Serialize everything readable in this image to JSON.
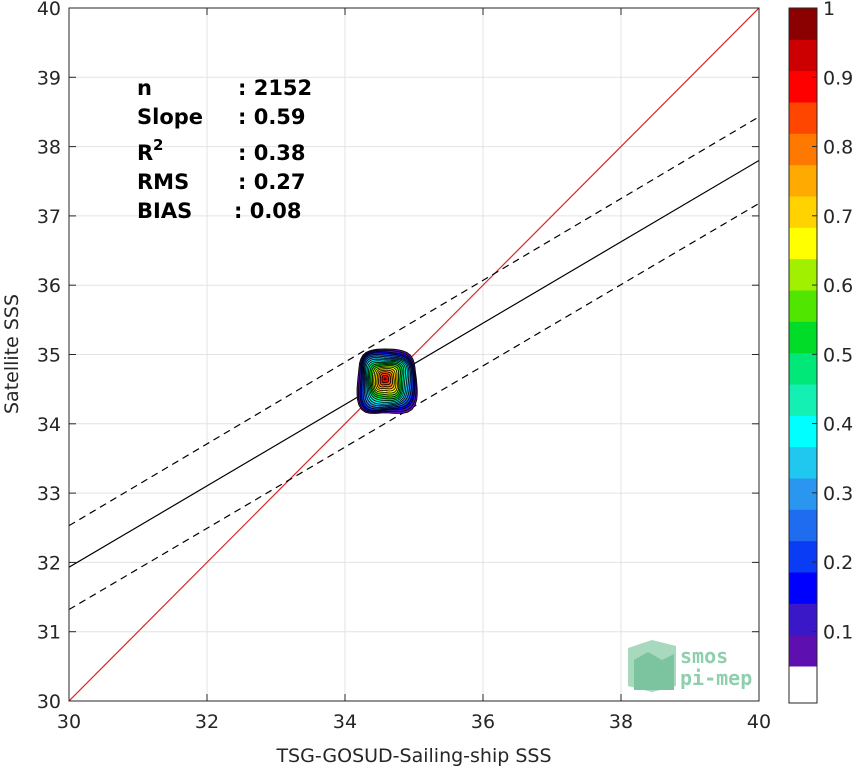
{
  "chart_data": {
    "type": "scatter",
    "subtype": "density-contour",
    "xlabel": "TSG-GOSUD-Sailing-ship SSS",
    "ylabel": "Satellite SSS",
    "xlim": [
      30,
      40
    ],
    "ylim": [
      30,
      40
    ],
    "xticks": [
      "30",
      "32",
      "34",
      "36",
      "38",
      "40"
    ],
    "yticks": [
      "30",
      "31",
      "32",
      "33",
      "34",
      "35",
      "36",
      "37",
      "38",
      "39",
      "40"
    ],
    "grid": true,
    "stats": {
      "n": {
        "label": "n",
        "value": ": 2152"
      },
      "slope": {
        "label": "Slope",
        "value": ": 0.59"
      },
      "r2": {
        "label": "R",
        "sup": "2",
        "value": ": 0.38"
      },
      "rms": {
        "label": "RMS",
        "value": ": 0.27"
      },
      "bias": {
        "label": "BIAS",
        "value": ": 0.08"
      }
    },
    "lines": {
      "identity": {
        "slope": 1,
        "intercept": 0,
        "color": "#d62728",
        "style": "solid"
      },
      "fit": {
        "x": [
          30,
          40
        ],
        "y": [
          31.93,
          37.8
        ],
        "color": "#000000",
        "style": "solid"
      },
      "upper": {
        "x": [
          30,
          40
        ],
        "y": [
          32.53,
          38.43
        ],
        "color": "#000000",
        "style": "dashed"
      },
      "lower": {
        "x": [
          30,
          40
        ],
        "y": [
          31.32,
          37.18
        ],
        "color": "#000000",
        "style": "dashed"
      }
    },
    "density": {
      "center": [
        34.58,
        34.65
      ],
      "extent_x": [
        34.18,
        35.04
      ],
      "extent_y": [
        34.13,
        35.07
      ],
      "levels": [
        0.05,
        0.1,
        0.15,
        0.2,
        0.25,
        0.3,
        0.35,
        0.4,
        0.45,
        0.5,
        0.55,
        0.6,
        0.65,
        0.7,
        0.75,
        0.8,
        0.85,
        0.9,
        0.95,
        1.0
      ]
    },
    "colorbar": {
      "min": 0,
      "max": 1,
      "ticks": [
        "0.1",
        "0.2",
        "0.3",
        "0.4",
        "0.5",
        "0.6",
        "0.7",
        "0.8",
        "0.9",
        "1"
      ],
      "colors": [
        "#ffffff",
        "#5e0fb0",
        "#3a18c8",
        "#0000ff",
        "#0a3cf5",
        "#1f6cf0",
        "#2a96f0",
        "#20c8f0",
        "#00ffff",
        "#14f0b4",
        "#00e878",
        "#00dc28",
        "#50e600",
        "#a0f000",
        "#ffff00",
        "#ffd200",
        "#ffaa00",
        "#ff7800",
        "#ff4600",
        "#ff0000",
        "#cc0000",
        "#8b0000"
      ]
    },
    "logo": {
      "line1": "smos",
      "line2": "pi-mep"
    }
  }
}
